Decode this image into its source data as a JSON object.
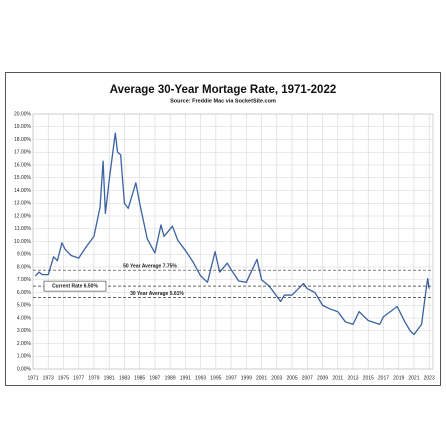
{
  "chart_data": {
    "type": "line",
    "title": "Average 30-Year Mortage Rate, 1971-2022",
    "subtitle": "Source: Freddie Mac via SocketSite.com",
    "color": "#3b62a3",
    "grid": true,
    "x": [
      1971.3,
      1971.8,
      1972.2,
      1973.0,
      1973.7,
      1974.2,
      1974.8,
      1975.2,
      1976.0,
      1977.0,
      1978.0,
      1979.0,
      1979.8,
      1980.2,
      1980.5,
      1981.0,
      1981.8,
      1982.1,
      1982.5,
      1983.0,
      1983.5,
      1984.5,
      1985.0,
      1986.0,
      1987.0,
      1987.8,
      1988.2,
      1989.3,
      1990.0,
      1991.0,
      1992.0,
      1993.0,
      1993.9,
      1994.9,
      1995.5,
      1996.5,
      1997.0,
      1998.0,
      1999.0,
      2000.4,
      2001.0,
      2002.0,
      2003.5,
      2004.0,
      2005.0,
      2006.5,
      2007.0,
      2008.0,
      2009.0,
      2010.0,
      2011.0,
      2012.0,
      2013.0,
      2013.8,
      2015.0,
      2016.5,
      2017.0,
      2018.8,
      2019.8,
      2020.5,
      2021.0,
      2022.0,
      2022.5,
      2022.8,
      2023.0
    ],
    "values": [
      7.3,
      7.6,
      7.4,
      7.4,
      8.8,
      8.5,
      9.9,
      9.4,
      8.9,
      8.7,
      9.6,
      10.4,
      12.7,
      16.3,
      12.2,
      14.8,
      18.5,
      17.0,
      16.8,
      13.0,
      12.6,
      14.6,
      13.0,
      10.2,
      9.1,
      11.3,
      10.4,
      11.2,
      10.1,
      9.3,
      8.4,
      7.3,
      6.8,
      9.2,
      7.6,
      8.3,
      7.8,
      6.9,
      6.8,
      8.6,
      7.0,
      6.5,
      5.3,
      5.8,
      5.8,
      6.7,
      6.3,
      6.0,
      5.0,
      4.7,
      4.5,
      3.7,
      3.5,
      4.5,
      3.8,
      3.5,
      4.1,
      4.9,
      3.7,
      3.0,
      2.7,
      3.5,
      5.8,
      7.1,
      6.3
    ],
    "xlim": [
      1971,
      2023.5
    ],
    "xticks": [
      1971,
      1973,
      1975,
      1977,
      1979,
      1981,
      1983,
      1985,
      1987,
      1989,
      1991,
      1993,
      1995,
      1997,
      1999,
      2001,
      2003,
      2005,
      2007,
      2009,
      2011,
      2013,
      2015,
      2017,
      2019,
      2021,
      2023
    ],
    "ylim": [
      0,
      20
    ],
    "yticks": [
      {
        "value": 0,
        "label": "0.00%"
      },
      {
        "value": 1,
        "label": "1.00%"
      },
      {
        "value": 2,
        "label": "2.00%"
      },
      {
        "value": 3,
        "label": "3.00%"
      },
      {
        "value": 4,
        "label": "4.00%"
      },
      {
        "value": 5,
        "label": "5.00%"
      },
      {
        "value": 6,
        "label": "6.00%"
      },
      {
        "value": 7,
        "label": "7.00%"
      },
      {
        "value": 8,
        "label": "8.00%"
      },
      {
        "value": 9,
        "label": "9.00%"
      },
      {
        "value": 10,
        "label": "10.00%"
      },
      {
        "value": 11,
        "label": "11.00%"
      },
      {
        "value": 12,
        "label": "12.00%"
      },
      {
        "value": 13,
        "label": "13.00%"
      },
      {
        "value": 14,
        "label": "14.00%"
      },
      {
        "value": 15,
        "label": "15.00%"
      },
      {
        "value": 16,
        "label": "16.00%"
      },
      {
        "value": 17,
        "label": "17.00%"
      },
      {
        "value": 18,
        "label": "18.00%"
      },
      {
        "value": 19,
        "label": "19.00%"
      },
      {
        "value": 20,
        "label": "20.00%"
      }
    ],
    "reference_lines": [
      {
        "label": "50 Year Average 7.75%",
        "value": 7.75
      },
      {
        "label": "Current Rate 6.50%",
        "value": 6.5
      },
      {
        "label": "30 Year Average 5.61%",
        "value": 5.61
      }
    ]
  }
}
